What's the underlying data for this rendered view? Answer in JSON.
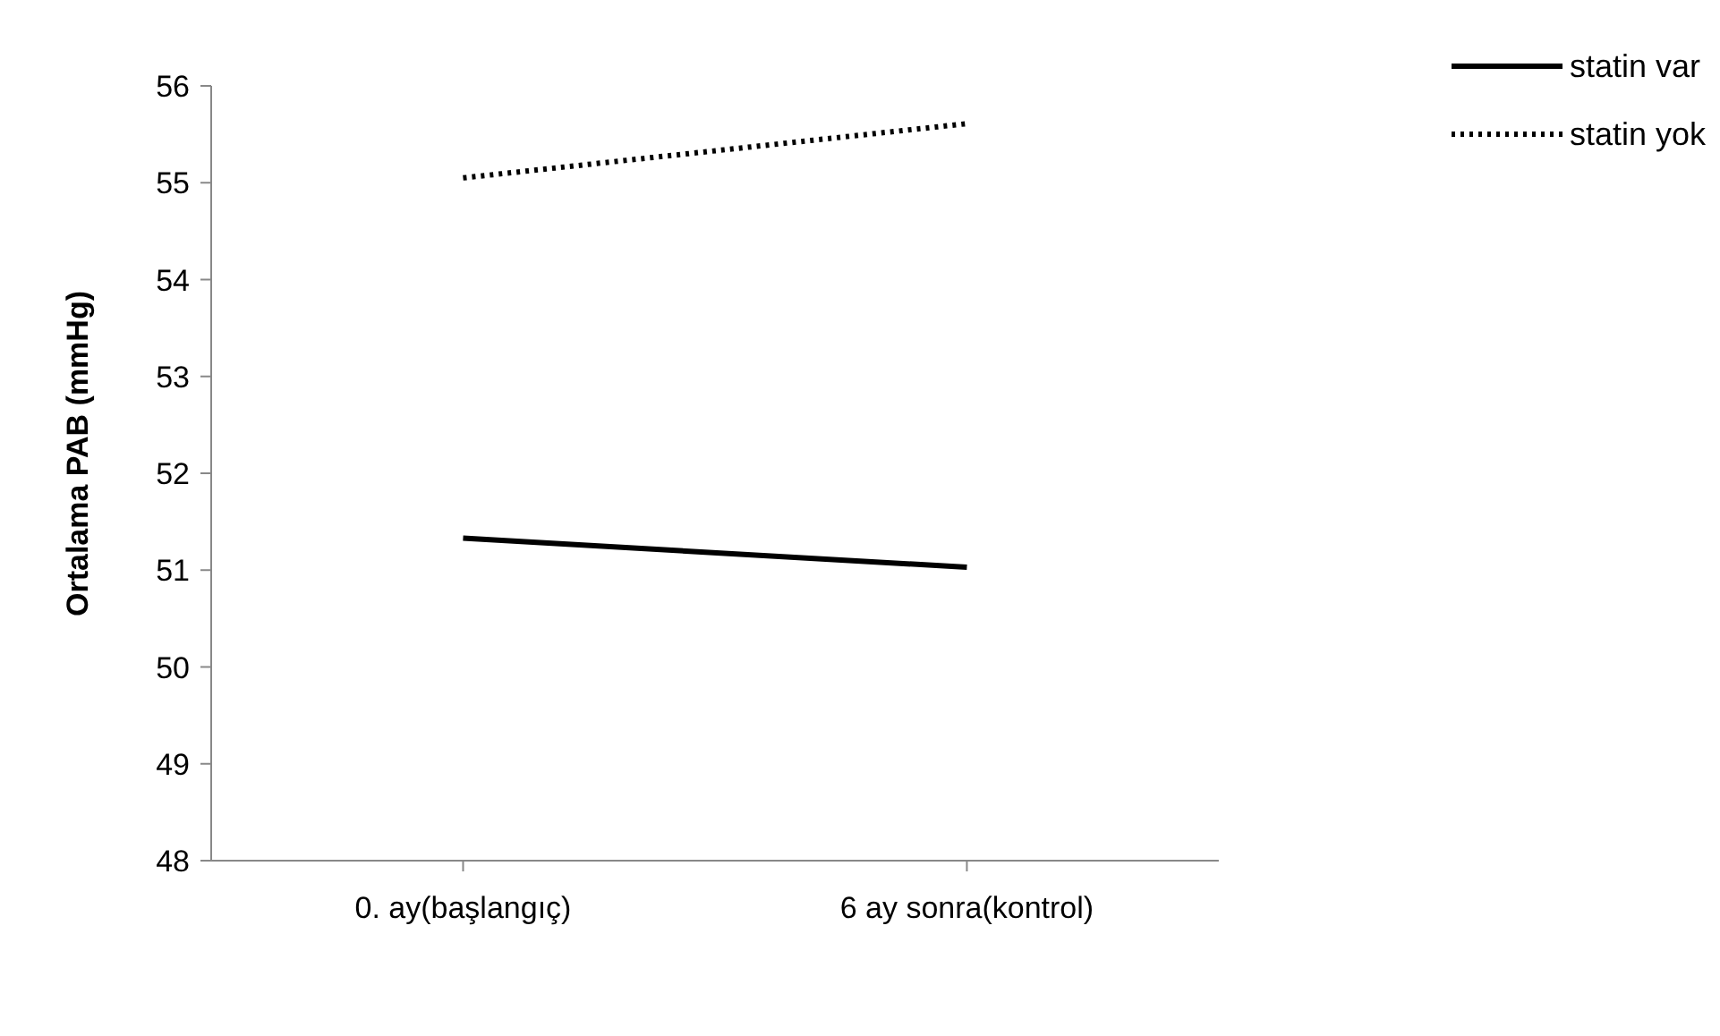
{
  "chart_data": {
    "type": "line",
    "ylabel": "Ortalama PAB (mmHg)",
    "categories": [
      "0. ay(başlangıç)",
      "6 ay sonra(kontrol)"
    ],
    "series": [
      {
        "name": "statin var",
        "color": "#000000",
        "line_style": "solid",
        "values": [
          51.33,
          51.03
        ]
      },
      {
        "name": "statin yok",
        "color": "#000000",
        "line_style": "dotted",
        "values": [
          55.05,
          55.61
        ]
      }
    ],
    "ylim": [
      48,
      56
    ],
    "yticks": [
      48,
      49,
      50,
      51,
      52,
      53,
      54,
      55,
      56
    ],
    "grid": false,
    "legend": "top right",
    "marker": "none"
  }
}
